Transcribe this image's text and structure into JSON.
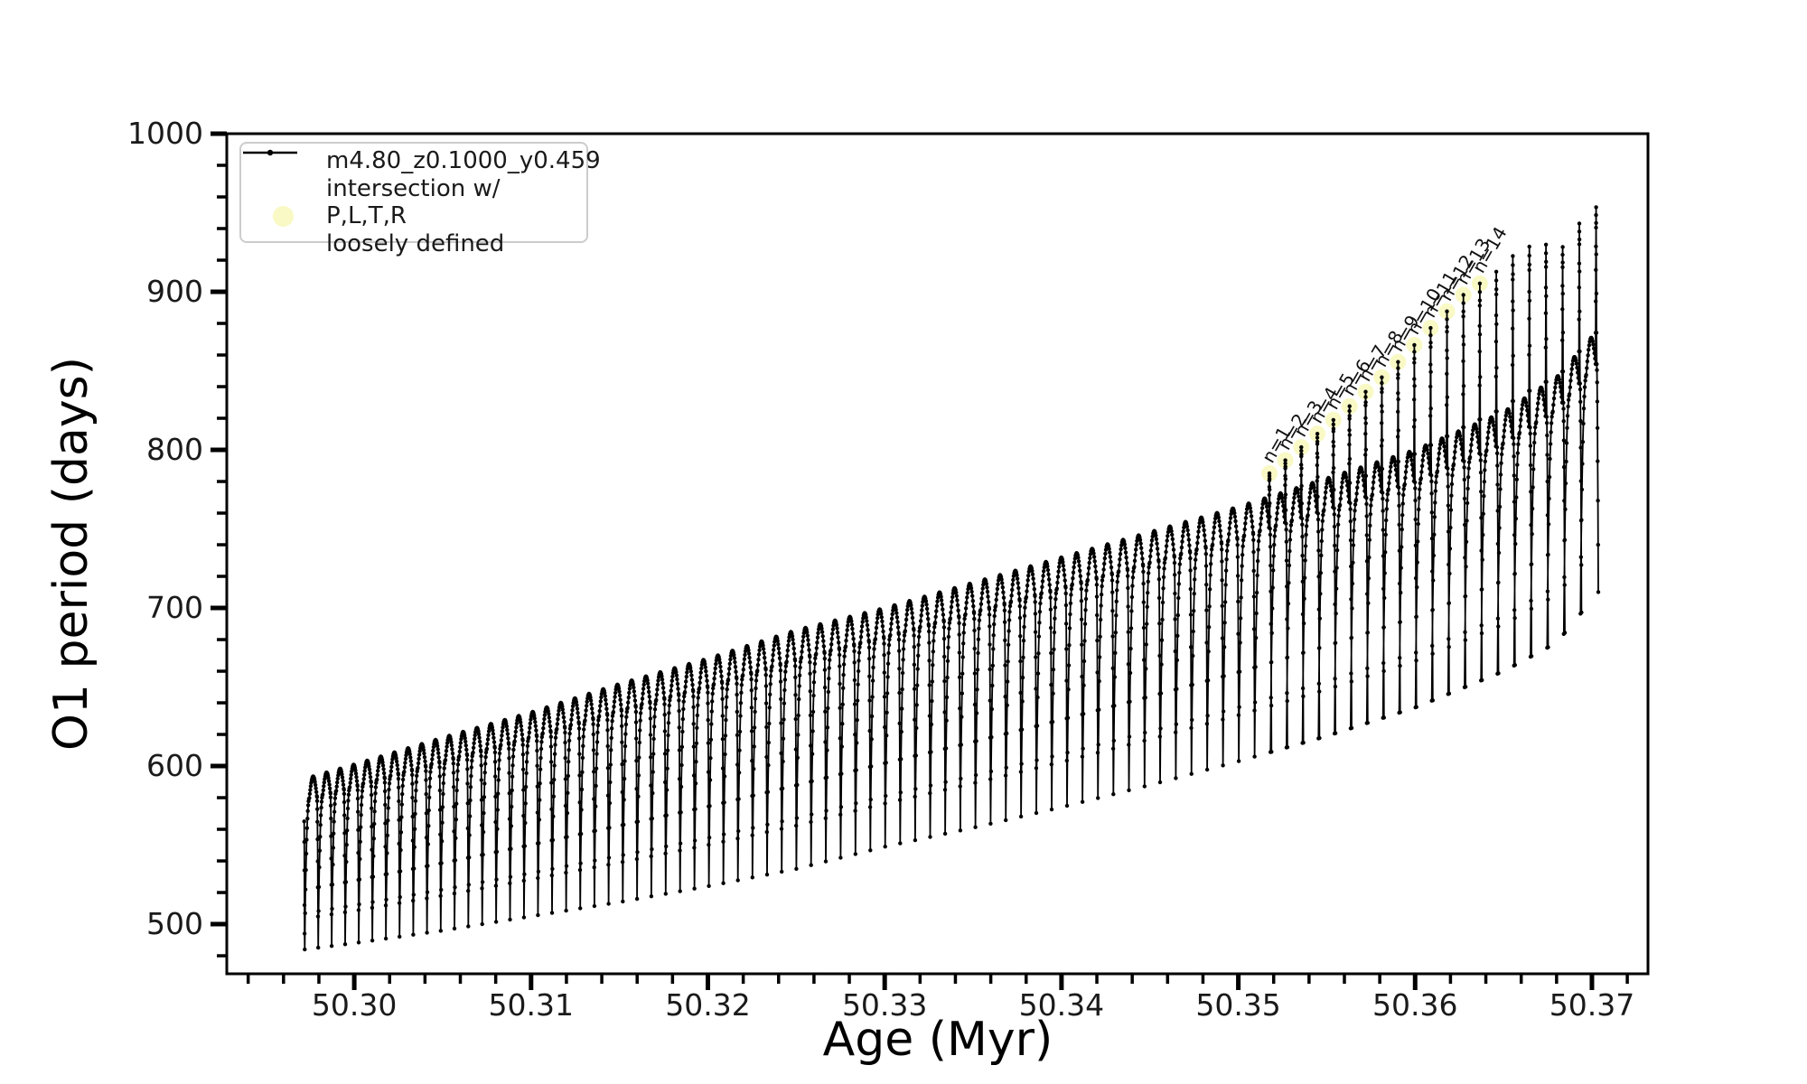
{
  "chart_data": {
    "type": "line",
    "title": "",
    "xlabel": "Age (Myr)",
    "ylabel": "O1 period (days)",
    "xlim": [
      50.29279,
      50.37317
    ],
    "ylim": [
      468.6,
      1000
    ],
    "grid": false,
    "x_major_ticks": [
      50.3,
      50.31,
      50.32,
      50.33,
      50.34,
      50.35,
      50.36,
      50.37
    ],
    "x_tick_labels": [
      "50.30",
      "50.31",
      "50.32",
      "50.33",
      "50.34",
      "50.35",
      "50.36",
      "50.37"
    ],
    "x_minor_step": 0.002,
    "y_major_ticks": [
      500,
      600,
      700,
      800,
      900,
      1000
    ],
    "y_tick_labels": [
      "500",
      "600",
      "700",
      "800",
      "900",
      "1000"
    ],
    "y_minor_step": 20,
    "series": [
      {
        "name": "m4.80_z0.1000_y0.459",
        "color": "#000000",
        "style": "line+dots"
      }
    ],
    "envelope_upper": [
      [
        50.2969,
        591
      ],
      [
        50.3,
        601
      ],
      [
        50.305,
        618
      ],
      [
        50.31,
        634
      ],
      [
        50.315,
        652
      ],
      [
        50.32,
        668
      ],
      [
        50.325,
        686
      ],
      [
        50.33,
        700
      ],
      [
        50.335,
        716
      ],
      [
        50.34,
        732
      ],
      [
        50.345,
        748
      ],
      [
        50.35,
        764
      ],
      [
        50.355,
        782
      ],
      [
        50.36,
        800
      ],
      [
        50.365,
        824
      ],
      [
        50.368,
        846
      ],
      [
        50.3705,
        878
      ]
    ],
    "envelope_lower": [
      [
        50.2972,
        484
      ],
      [
        50.3,
        488
      ],
      [
        50.305,
        496
      ],
      [
        50.31,
        505
      ],
      [
        50.315,
        514
      ],
      [
        50.32,
        524
      ],
      [
        50.325,
        535
      ],
      [
        50.33,
        549
      ],
      [
        50.335,
        561
      ],
      [
        50.34,
        574
      ],
      [
        50.345,
        588
      ],
      [
        50.35,
        603
      ],
      [
        50.355,
        619
      ],
      [
        50.36,
        637
      ],
      [
        50.365,
        660
      ],
      [
        50.368,
        678
      ],
      [
        50.3705,
        712
      ]
    ],
    "spike_peaks": [
      [
        50.3515,
        783
      ],
      [
        50.3539,
        805
      ],
      [
        50.3563,
        828
      ],
      [
        50.3587,
        852
      ],
      [
        50.3611,
        880
      ],
      [
        50.3627,
        898
      ],
      [
        50.3645,
        912
      ],
      [
        50.366,
        928
      ],
      [
        50.3675,
        930
      ],
      [
        50.3685,
        928
      ],
      [
        50.3695,
        948
      ],
      [
        50.3704,
        955
      ]
    ],
    "oscillation": {
      "x_start": 50.2972,
      "x_end": 50.3706,
      "period_start": 0.00076,
      "period_end": 0.00095,
      "spike_start_x": 50.3512,
      "entry_point_ys": [
        565,
        552,
        534,
        512,
        494
      ]
    },
    "annotations": [
      {
        "label": "n=1"
      },
      {
        "label": "n=2"
      },
      {
        "label": "n=3"
      },
      {
        "label": "n=4"
      },
      {
        "label": "n=5"
      },
      {
        "label": "n=6"
      },
      {
        "label": "n=7"
      },
      {
        "label": "n=8"
      },
      {
        "label": "n=9"
      },
      {
        "label": "n=10"
      },
      {
        "label": "n=11"
      },
      {
        "label": "n=12"
      },
      {
        "label": "n=13"
      },
      {
        "label": "n=14"
      }
    ],
    "annotation_rotation_deg": -60
  },
  "legend": {
    "series_label": "m4.80_z0.1000_y0.459",
    "intersection_label": "intersection w/ P,L,T,R\nloosely defined",
    "intersection_color": "#f9f9c5"
  },
  "style": {
    "line_color": "#000000",
    "marker_color": "#000000",
    "axis_color": "#000000",
    "tick_label_color": "#1a1a1a",
    "annotation_color": "#111111",
    "background": "#ffffff"
  }
}
